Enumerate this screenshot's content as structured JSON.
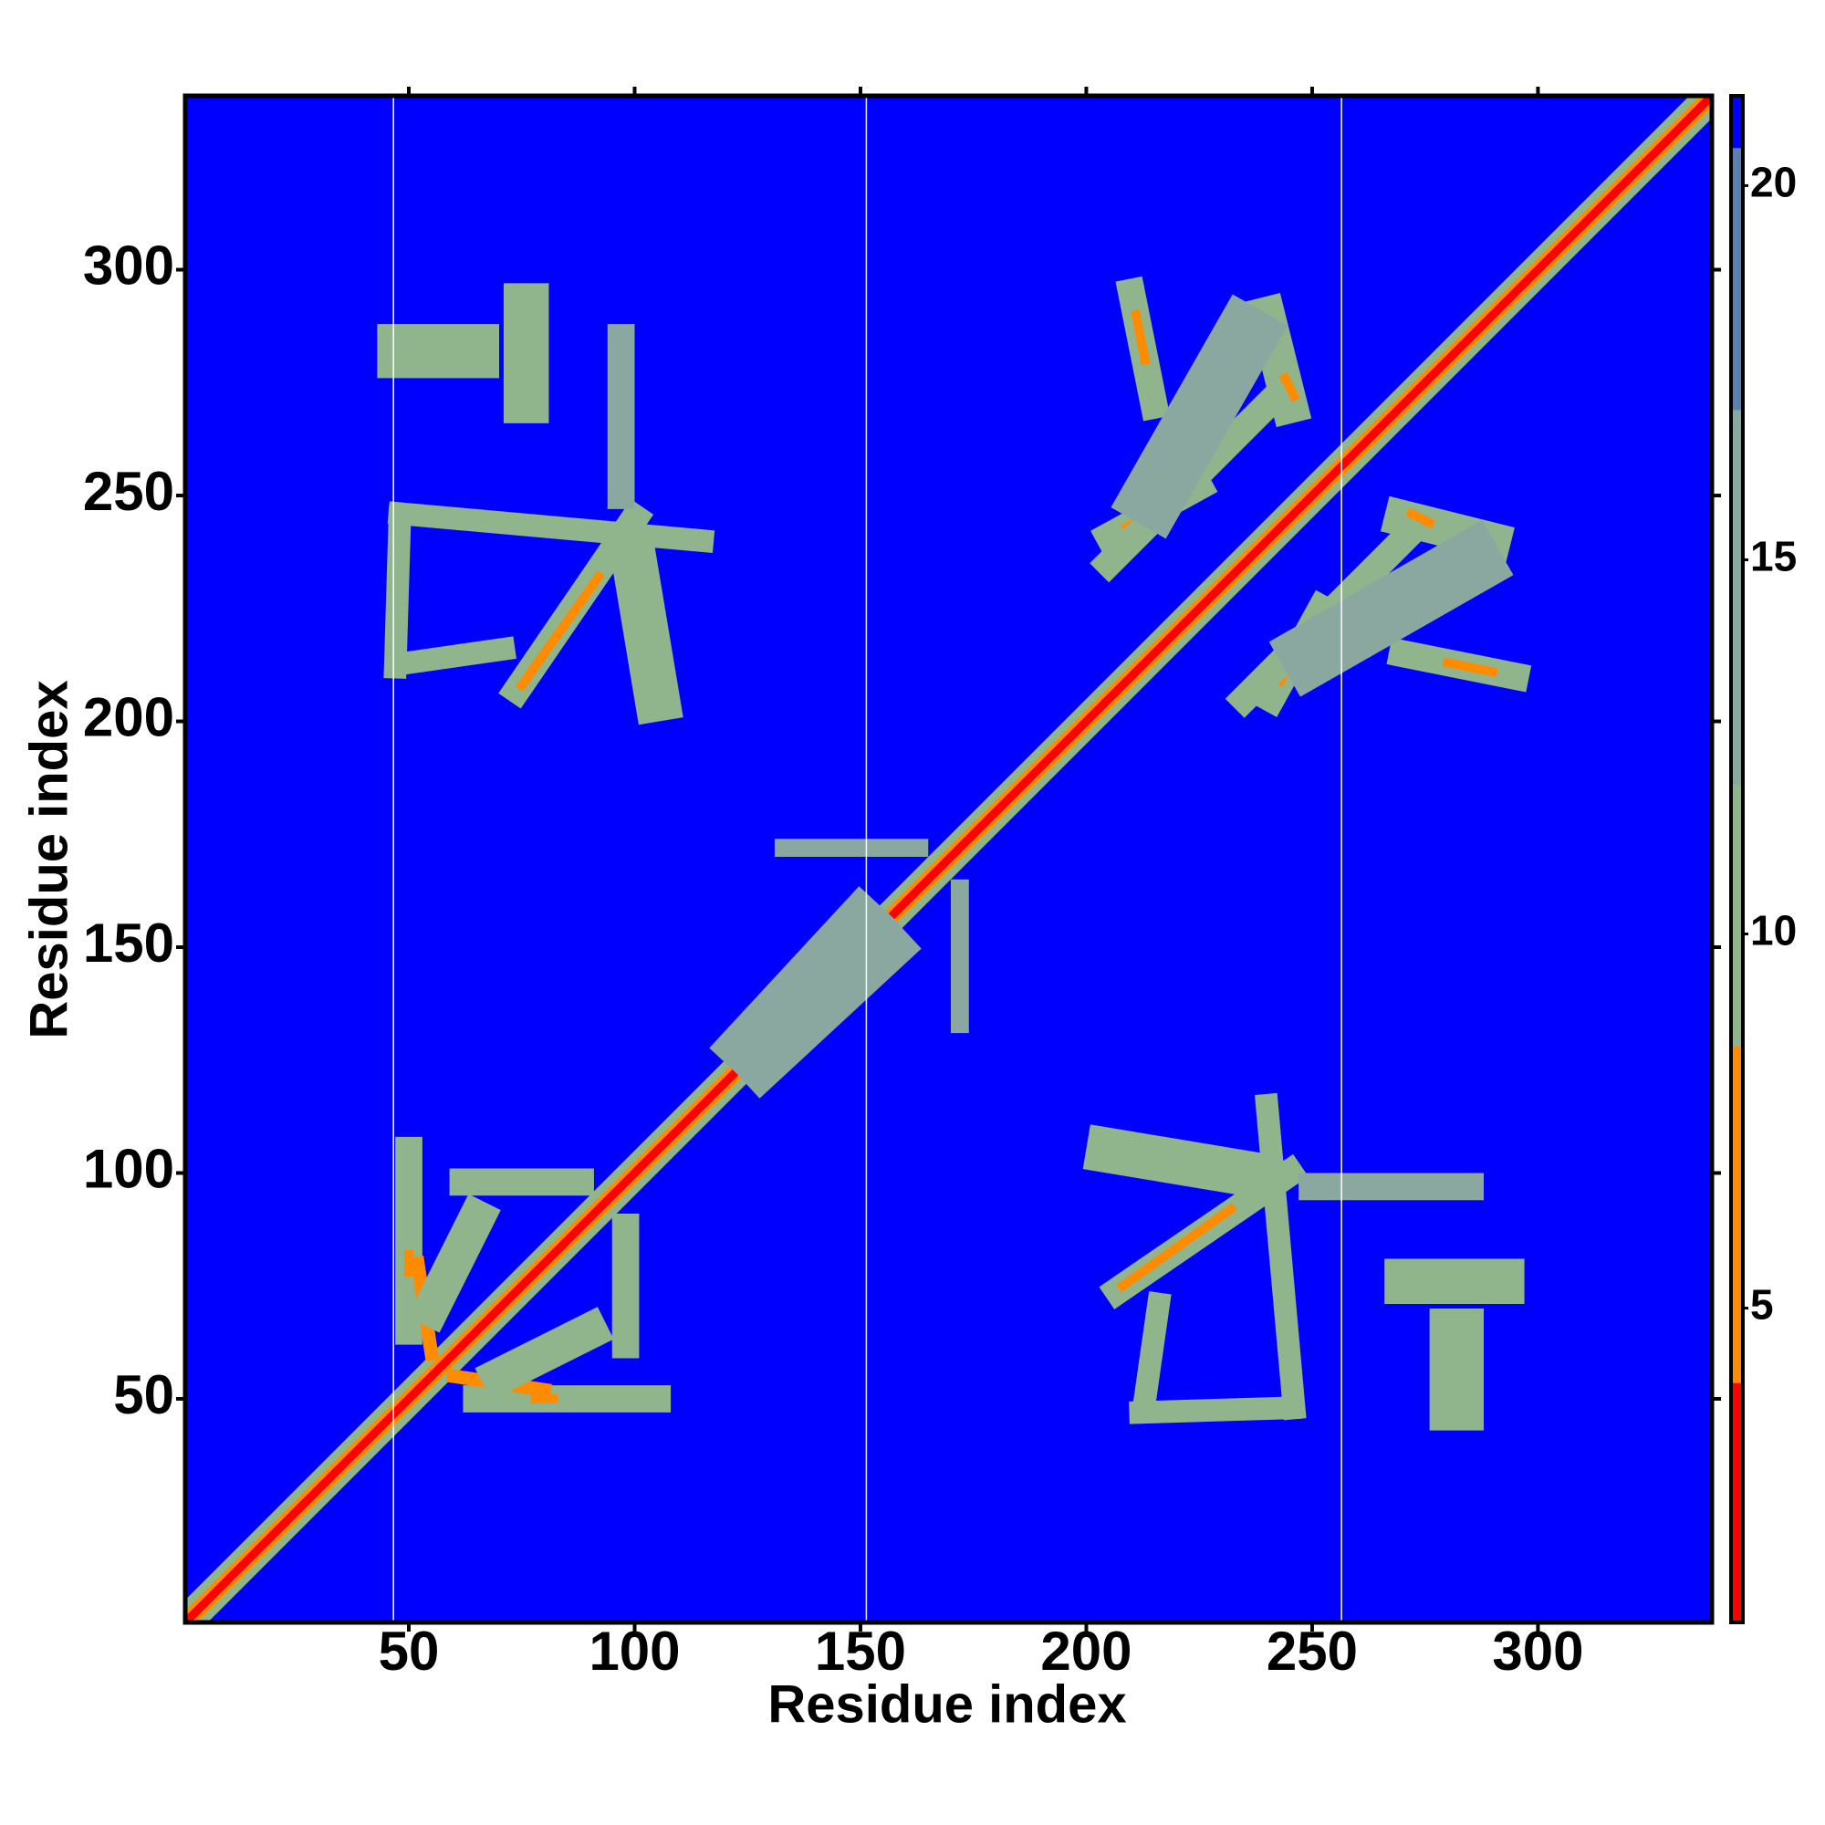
{
  "chart_data": {
    "type": "heatmap",
    "xlabel": "Residue index",
    "ylabel": "Residue index",
    "xlim": [
      0.5,
      338.5
    ],
    "ylim": [
      0.5,
      338.5
    ],
    "xticks": [
      50,
      100,
      150,
      200,
      250,
      300
    ],
    "yticks": [
      50,
      100,
      150,
      200,
      250,
      300
    ],
    "clim": [
      0.8,
      21.2
    ],
    "cticks": [
      5,
      10,
      15,
      20
    ],
    "colormap": [
      {
        "value": 4,
        "color": "#ff0000"
      },
      {
        "value": 8.5,
        "color": "#ff8c00"
      },
      {
        "value": 12,
        "color": "#90b48c"
      },
      {
        "value": 17,
        "color": "#8aa8a0"
      },
      {
        "value": 20.5,
        "color": "#5a7fb0"
      },
      {
        "value": 21.2,
        "color": "#0000ff"
      }
    ],
    "background": 21,
    "symmetric": true,
    "vlines": [
      46.6,
      151.3,
      256.5
    ],
    "contacts": [
      {
        "from": [
          1,
          1
        ],
        "to": [
          338,
          338
        ],
        "width": 7,
        "value": 11
      },
      {
        "from": [
          1,
          1
        ],
        "to": [
          338,
          338
        ],
        "width": 3.6,
        "value": 6
      },
      {
        "from": [
          1,
          1
        ],
        "to": [
          338,
          338
        ],
        "width": 1.8,
        "value": 2
      },
      {
        "from": [
          74,
          207
        ],
        "to": [
          100,
          245
        ],
        "width": 6,
        "value": 11
      },
      {
        "from": [
          75,
          208
        ],
        "to": [
          92,
          232
        ],
        "width": 2,
        "value": 6
      },
      {
        "from": [
          48,
          245
        ],
        "to": [
          47,
          212
        ],
        "width": 5,
        "value": 12
      },
      {
        "from": [
          48,
          246
        ],
        "to": [
          115,
          240
        ],
        "width": 5,
        "value": 12
      },
      {
        "from": [
          50,
          213
        ],
        "to": [
          71,
          216
        ],
        "width": 5,
        "value": 12
      },
      {
        "from": [
          100,
          235
        ],
        "to": [
          105,
          205
        ],
        "width": 10,
        "value": 12
      },
      {
        "from": [
          49,
          282
        ],
        "to": [
          64,
          282
        ],
        "width": 12,
        "value": 12
      },
      {
        "from": [
          76,
          271
        ],
        "to": [
          76,
          292
        ],
        "width": 10,
        "value": 12
      },
      {
        "from": [
          97,
          250
        ],
        "to": [
          97,
          285
        ],
        "width": 6,
        "value": 15
      },
      {
        "from": [
          50,
          65
        ],
        "to": [
          50,
          105
        ],
        "width": 6,
        "value": 11
      },
      {
        "from": [
          50,
          78
        ],
        "to": [
          50,
          82
        ],
        "width": 2,
        "value": 6
      },
      {
        "from": [
          62,
          98
        ],
        "to": [
          88,
          98
        ],
        "width": 6,
        "value": 12
      },
      {
        "from": [
          55,
          60
        ],
        "to": [
          52,
          80
        ],
        "width": 3,
        "value": 6
      },
      {
        "from": [
          55,
          70
        ],
        "to": [
          65,
          90
        ],
        "width": 8,
        "value": 11
      },
      {
        "from": [
          133,
          172
        ],
        "to": [
          163,
          172
        ],
        "width": 4,
        "value": 13
      },
      {
        "from": [
          125,
          128
        ],
        "to": [
          150,
          155
        ],
        "width": 12,
        "value": 13
      },
      {
        "from": [
          210,
          295
        ],
        "to": [
          215,
          270
        ],
        "width": 6,
        "value": 11
      },
      {
        "from": [
          211,
          290
        ],
        "to": [
          213,
          280
        ],
        "width": 2,
        "value": 5
      },
      {
        "from": [
          205,
          241
        ],
        "to": [
          225,
          252
        ],
        "width": 6,
        "value": 11
      },
      {
        "from": [
          209,
          243
        ],
        "to": [
          220,
          248
        ],
        "width": 2,
        "value": 5
      },
      {
        "from": [
          240,
          290
        ],
        "to": [
          245,
          270
        ],
        "width": 8,
        "value": 12
      },
      {
        "from": [
          244,
          276
        ],
        "to": [
          246,
          272
        ],
        "width": 2,
        "value": 6
      },
      {
        "from": [
          205,
          235
        ],
        "to": [
          240,
          270
        ],
        "width": 6,
        "value": 12
      },
      {
        "from": [
          215,
          250
        ],
        "to": [
          235,
          285
        ],
        "width": 14,
        "value": 15
      }
    ]
  }
}
